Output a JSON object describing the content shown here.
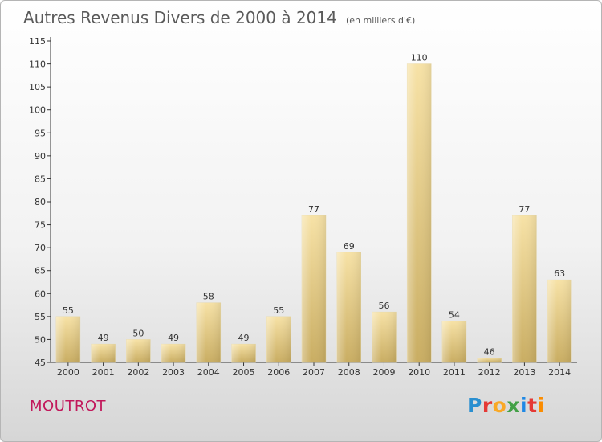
{
  "header": {
    "title": "Autres Revenus Divers de 2000 à 2014",
    "unit": "(en milliers d'€)"
  },
  "footer": {
    "commune": "MOUTROT",
    "logo_letters": [
      "P",
      "r",
      "o",
      "x",
      "i",
      "t",
      "i"
    ],
    "logo_colors": [
      "#2a8fd0",
      "#e53935",
      "#f9a825",
      "#43a047",
      "#1e88e5",
      "#e53935",
      "#fb8c00"
    ]
  },
  "colors": {
    "bar_light": "#f7e2a6",
    "bar_dark": "#c9ad62",
    "axis": "#333333",
    "commune": "#c2185b"
  },
  "chart_data": {
    "type": "bar",
    "title": "Autres Revenus Divers de 2000 à 2014",
    "subtitle": "(en milliers d'€)",
    "categories": [
      "2000",
      "2001",
      "2002",
      "2003",
      "2004",
      "2005",
      "2006",
      "2007",
      "2008",
      "2009",
      "2010",
      "2011",
      "2012",
      "2013",
      "2014"
    ],
    "values": [
      55,
      49,
      50,
      49,
      58,
      49,
      55,
      77,
      69,
      56,
      110,
      54,
      46,
      77,
      63
    ],
    "ylim": [
      45,
      115
    ],
    "yticks": [
      45,
      50,
      55,
      60,
      65,
      70,
      75,
      80,
      85,
      90,
      95,
      100,
      105,
      110,
      115
    ],
    "xlabel": "",
    "ylabel": "",
    "grid": false,
    "data_labels": true
  }
}
